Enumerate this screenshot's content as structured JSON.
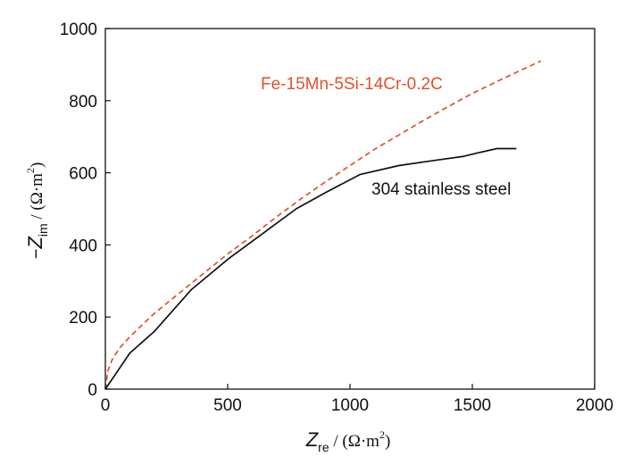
{
  "chart_data": {
    "type": "line",
    "xlabel": {
      "symbol": "Z",
      "subscript": "re",
      "unit": " / (Ω·m",
      "sup": "2",
      "close": ")"
    },
    "ylabel": {
      "minus": "−",
      "symbol": "Z",
      "subscript": "im",
      "unit": " / (Ω·m",
      "sup": "2",
      "close": ")"
    },
    "xlim": [
      0,
      2000
    ],
    "ylim": [
      0,
      1000
    ],
    "x_ticks": [
      0,
      500,
      1000,
      1500,
      2000
    ],
    "y_ticks": [
      0,
      200,
      400,
      600,
      800,
      1000
    ],
    "grid": false,
    "series": [
      {
        "name": "Fe-15Mn-5Si-14Cr-0.2C",
        "color": "#e0522a",
        "dash": "dashed",
        "x": [
          0,
          10,
          30,
          60,
          100,
          150,
          200,
          300,
          400,
          500,
          600,
          700,
          800,
          900,
          1000,
          1100,
          1200,
          1300,
          1400,
          1500,
          1600,
          1700,
          1780
        ],
        "y": [
          0,
          50,
          85,
          115,
          145,
          178,
          210,
          265,
          320,
          375,
          425,
          478,
          528,
          575,
          620,
          665,
          705,
          745,
          783,
          820,
          853,
          885,
          910
        ]
      },
      {
        "name": "304 stainless steel",
        "color": "#111111",
        "dash": "solid",
        "x": [
          0,
          100,
          200,
          350,
          500,
          650,
          780,
          900,
          1040,
          1200,
          1330,
          1460,
          1520,
          1600,
          1680
        ],
        "y": [
          0,
          100,
          160,
          275,
          360,
          435,
          500,
          545,
          595,
          620,
          633,
          645,
          655,
          667,
          667
        ]
      }
    ]
  }
}
